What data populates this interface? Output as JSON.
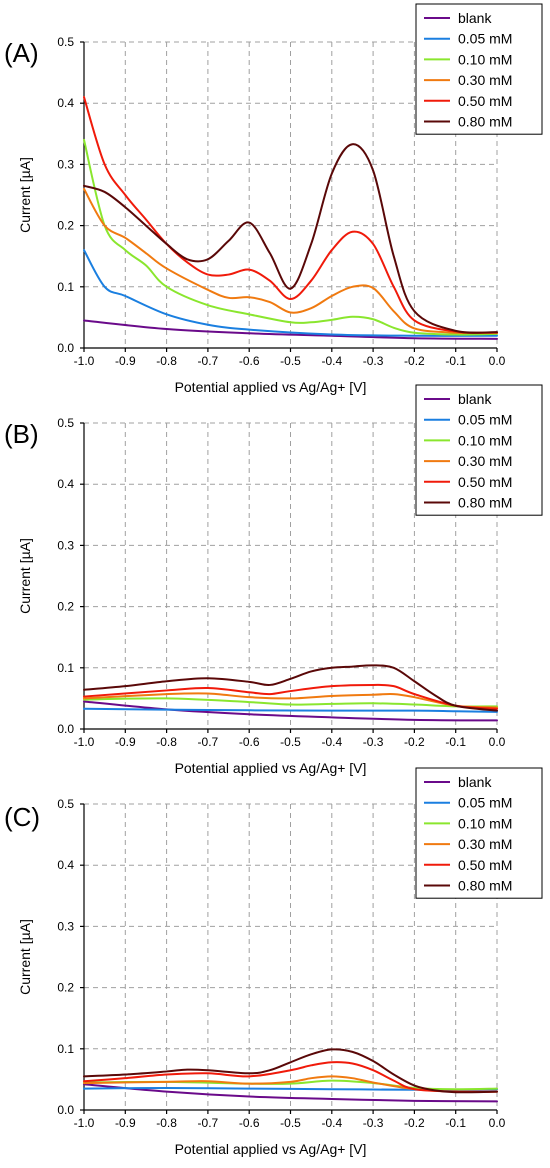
{
  "colors": {
    "blank": "#6a0a8a",
    "0.05 mM": "#1a7fe0",
    "0.10 mM": "#8ae62e",
    "0.30 mM": "#f07a10",
    "0.50 mM": "#f01a0a",
    "0.80 mM": "#5a0808"
  },
  "chart_data": [
    {
      "type": "line",
      "panel_label": "(A)",
      "xlabel": "Potential applied vs Ag/Ag+ [V]",
      "ylabel": "Current [µA]",
      "xlim": [
        -1.0,
        0.0
      ],
      "ylim": [
        0.0,
        0.5
      ],
      "xticks": [
        "-1.0",
        "-0.9",
        "-0.8",
        "-0.7",
        "-0.6",
        "-0.5",
        "-0.4",
        "-0.3",
        "-0.2",
        "-0.1",
        "0.0"
      ],
      "yticks": [
        "0.0",
        "0.1",
        "0.2",
        "0.3",
        "0.4",
        "0.5"
      ],
      "grid": true,
      "legend_position": "top-right",
      "series": [
        {
          "name": "blank",
          "x": [
            -1.0,
            -0.8,
            -0.6,
            -0.4,
            -0.2,
            0.0
          ],
          "y": [
            0.045,
            0.031,
            0.024,
            0.02,
            0.016,
            0.015
          ]
        },
        {
          "name": "0.05 mM",
          "x": [
            -1.0,
            -0.95,
            -0.9,
            -0.8,
            -0.7,
            -0.6,
            -0.4,
            -0.2,
            0.0
          ],
          "y": [
            0.16,
            0.1,
            0.085,
            0.055,
            0.038,
            0.03,
            0.022,
            0.02,
            0.02
          ]
        },
        {
          "name": "0.10 mM",
          "x": [
            -1.0,
            -0.95,
            -0.9,
            -0.85,
            -0.8,
            -0.7,
            -0.6,
            -0.5,
            -0.45,
            -0.4,
            -0.35,
            -0.3,
            -0.25,
            -0.2,
            -0.1,
            0.0
          ],
          "y": [
            0.34,
            0.2,
            0.16,
            0.135,
            0.1,
            0.07,
            0.055,
            0.042,
            0.042,
            0.046,
            0.051,
            0.047,
            0.033,
            0.025,
            0.022,
            0.023
          ]
        },
        {
          "name": "0.30 mM",
          "x": [
            -1.0,
            -0.95,
            -0.9,
            -0.85,
            -0.8,
            -0.7,
            -0.65,
            -0.6,
            -0.55,
            -0.5,
            -0.45,
            -0.4,
            -0.35,
            -0.3,
            -0.25,
            -0.2,
            -0.1,
            0.0
          ],
          "y": [
            0.26,
            0.2,
            0.18,
            0.155,
            0.13,
            0.095,
            0.082,
            0.083,
            0.075,
            0.058,
            0.065,
            0.085,
            0.1,
            0.098,
            0.06,
            0.032,
            0.025,
            0.025
          ]
        },
        {
          "name": "0.50 mM",
          "x": [
            -1.0,
            -0.95,
            -0.9,
            -0.85,
            -0.8,
            -0.75,
            -0.7,
            -0.65,
            -0.6,
            -0.55,
            -0.5,
            -0.45,
            -0.4,
            -0.35,
            -0.3,
            -0.25,
            -0.2,
            -0.1,
            0.0
          ],
          "y": [
            0.41,
            0.3,
            0.25,
            0.21,
            0.17,
            0.14,
            0.12,
            0.12,
            0.128,
            0.11,
            0.08,
            0.11,
            0.16,
            0.19,
            0.17,
            0.1,
            0.045,
            0.027,
            0.025
          ]
        },
        {
          "name": "0.80 mM",
          "x": [
            -1.0,
            -0.95,
            -0.9,
            -0.85,
            -0.8,
            -0.75,
            -0.7,
            -0.65,
            -0.6,
            -0.55,
            -0.5,
            -0.45,
            -0.4,
            -0.35,
            -0.3,
            -0.25,
            -0.2,
            -0.1,
            0.0
          ],
          "y": [
            0.265,
            0.255,
            0.23,
            0.2,
            0.17,
            0.145,
            0.145,
            0.175,
            0.205,
            0.155,
            0.097,
            0.17,
            0.285,
            0.333,
            0.29,
            0.15,
            0.06,
            0.028,
            0.026
          ]
        }
      ]
    },
    {
      "type": "line",
      "panel_label": "(B)",
      "xlabel": "Potential applied vs Ag/Ag+ [V]",
      "ylabel": "Current [µA]",
      "xlim": [
        -1.0,
        0.0
      ],
      "ylim": [
        0.0,
        0.5
      ],
      "xticks": [
        "-1.0",
        "-0.9",
        "-0.8",
        "-0.7",
        "-0.6",
        "-0.5",
        "-0.4",
        "-0.3",
        "-0.2",
        "-0.1",
        "0.0"
      ],
      "yticks": [
        "0.0",
        "0.1",
        "0.2",
        "0.3",
        "0.4",
        "0.5"
      ],
      "grid": true,
      "legend_position": "top-right",
      "series": [
        {
          "name": "blank",
          "x": [
            -1.0,
            -0.8,
            -0.6,
            -0.4,
            -0.2,
            0.0
          ],
          "y": [
            0.045,
            0.032,
            0.024,
            0.019,
            0.015,
            0.014
          ]
        },
        {
          "name": "0.05 mM",
          "x": [
            -1.0,
            -0.7,
            -0.4,
            -0.2,
            -0.1,
            0.0
          ],
          "y": [
            0.033,
            0.031,
            0.03,
            0.03,
            0.029,
            0.028
          ]
        },
        {
          "name": "0.10 mM",
          "x": [
            -1.0,
            -0.8,
            -0.6,
            -0.5,
            -0.4,
            -0.3,
            -0.2,
            -0.1,
            0.0
          ],
          "y": [
            0.048,
            0.05,
            0.044,
            0.04,
            0.041,
            0.042,
            0.04,
            0.037,
            0.037
          ]
        },
        {
          "name": "0.30 mM",
          "x": [
            -1.0,
            -0.8,
            -0.7,
            -0.6,
            -0.5,
            -0.4,
            -0.3,
            -0.25,
            -0.2,
            -0.1,
            0.0
          ],
          "y": [
            0.05,
            0.057,
            0.058,
            0.052,
            0.05,
            0.054,
            0.056,
            0.057,
            0.052,
            0.038,
            0.035
          ]
        },
        {
          "name": "0.50 mM",
          "x": [
            -1.0,
            -0.8,
            -0.7,
            -0.6,
            -0.55,
            -0.5,
            -0.4,
            -0.3,
            -0.25,
            -0.2,
            -0.1,
            0.0
          ],
          "y": [
            0.053,
            0.063,
            0.067,
            0.06,
            0.057,
            0.062,
            0.07,
            0.072,
            0.07,
            0.057,
            0.038,
            0.033
          ]
        },
        {
          "name": "0.80 mM",
          "x": [
            -1.0,
            -0.9,
            -0.8,
            -0.7,
            -0.6,
            -0.55,
            -0.5,
            -0.45,
            -0.4,
            -0.35,
            -0.3,
            -0.25,
            -0.2,
            -0.15,
            -0.1,
            0.0
          ],
          "y": [
            0.064,
            0.07,
            0.078,
            0.083,
            0.077,
            0.072,
            0.082,
            0.094,
            0.1,
            0.102,
            0.104,
            0.1,
            0.078,
            0.055,
            0.038,
            0.03
          ]
        }
      ]
    },
    {
      "type": "line",
      "panel_label": "(C)",
      "xlabel": "Potential applied vs Ag/Ag+ [V]",
      "ylabel": "Current [µA]",
      "xlim": [
        -1.0,
        0.0
      ],
      "ylim": [
        0.0,
        0.5
      ],
      "xticks": [
        "-1.0",
        "-0.9",
        "-0.8",
        "-0.7",
        "-0.6",
        "-0.5",
        "-0.4",
        "-0.3",
        "-0.2",
        "-0.1",
        "0.0"
      ],
      "yticks": [
        "0.0",
        "0.1",
        "0.2",
        "0.3",
        "0.4",
        "0.5"
      ],
      "grid": true,
      "legend_position": "top-right",
      "series": [
        {
          "name": "blank",
          "x": [
            -1.0,
            -0.8,
            -0.6,
            -0.4,
            -0.2,
            0.0
          ],
          "y": [
            0.042,
            0.03,
            0.022,
            0.018,
            0.015,
            0.014
          ]
        },
        {
          "name": "0.05 mM",
          "x": [
            -1.0,
            -0.8,
            -0.6,
            -0.4,
            -0.2,
            -0.1,
            0.0
          ],
          "y": [
            0.035,
            0.036,
            0.035,
            0.034,
            0.033,
            0.033,
            0.034
          ]
        },
        {
          "name": "0.10 mM",
          "x": [
            -1.0,
            -0.8,
            -0.6,
            -0.5,
            -0.4,
            -0.3,
            -0.2,
            -0.1,
            0.0
          ],
          "y": [
            0.045,
            0.046,
            0.043,
            0.043,
            0.048,
            0.044,
            0.036,
            0.034,
            0.035
          ]
        },
        {
          "name": "0.30 mM",
          "x": [
            -1.0,
            -0.8,
            -0.7,
            -0.6,
            -0.5,
            -0.45,
            -0.4,
            -0.35,
            -0.3,
            -0.2,
            -0.1,
            0.0
          ],
          "y": [
            0.044,
            0.046,
            0.047,
            0.043,
            0.046,
            0.052,
            0.055,
            0.052,
            0.045,
            0.034,
            0.03,
            0.03
          ]
        },
        {
          "name": "0.50 mM",
          "x": [
            -1.0,
            -0.9,
            -0.8,
            -0.7,
            -0.6,
            -0.5,
            -0.45,
            -0.4,
            -0.35,
            -0.3,
            -0.25,
            -0.2,
            -0.1,
            0.0
          ],
          "y": [
            0.047,
            0.052,
            0.058,
            0.06,
            0.055,
            0.065,
            0.073,
            0.078,
            0.076,
            0.065,
            0.048,
            0.034,
            0.03,
            0.03
          ]
        },
        {
          "name": "0.80 mM",
          "x": [
            -1.0,
            -0.9,
            -0.8,
            -0.75,
            -0.7,
            -0.6,
            -0.55,
            -0.5,
            -0.45,
            -0.4,
            -0.35,
            -0.3,
            -0.25,
            -0.2,
            -0.15,
            -0.1,
            0.0
          ],
          "y": [
            0.055,
            0.058,
            0.063,
            0.066,
            0.065,
            0.06,
            0.065,
            0.078,
            0.091,
            0.099,
            0.095,
            0.08,
            0.058,
            0.04,
            0.032,
            0.029,
            0.03
          ]
        }
      ]
    }
  ]
}
